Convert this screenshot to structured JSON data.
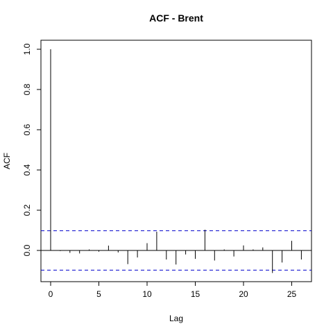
{
  "chart_data": {
    "type": "bar",
    "title": "ACF - Brent",
    "xlabel": "Lag",
    "ylabel": "ACF",
    "xlim": [
      -1,
      27
    ],
    "ylim": [
      -0.21,
      1.0
    ],
    "x_ticks": [
      0,
      5,
      10,
      15,
      20,
      25
    ],
    "x_tick_labels": [
      "0",
      "5",
      "10",
      "15",
      "20",
      "25"
    ],
    "y_ticks": [
      0.0,
      0.2,
      0.4,
      0.6,
      0.8,
      1.0
    ],
    "y_tick_labels": [
      "0.0",
      "0.2",
      "0.4",
      "0.6",
      "0.8",
      "1.0"
    ],
    "lags": [
      0,
      1,
      2,
      3,
      4,
      5,
      6,
      7,
      8,
      9,
      10,
      11,
      12,
      13,
      14,
      15,
      16,
      17,
      18,
      19,
      20,
      21,
      22,
      23,
      24,
      25,
      26
    ],
    "values": [
      1.0,
      -0.003,
      -0.012,
      -0.015,
      0.005,
      -0.006,
      0.024,
      -0.01,
      -0.068,
      -0.035,
      0.036,
      0.093,
      -0.045,
      -0.07,
      -0.02,
      -0.042,
      0.103,
      -0.05,
      0.005,
      -0.03,
      0.025,
      0.005,
      0.015,
      -0.112,
      -0.06,
      0.048,
      -0.045
    ],
    "confidence_bound": 0.098,
    "colors": {
      "bars": "#000000",
      "bounds": "#0000cc",
      "zero_line": "#000000"
    },
    "grid": false,
    "legend": "none"
  }
}
